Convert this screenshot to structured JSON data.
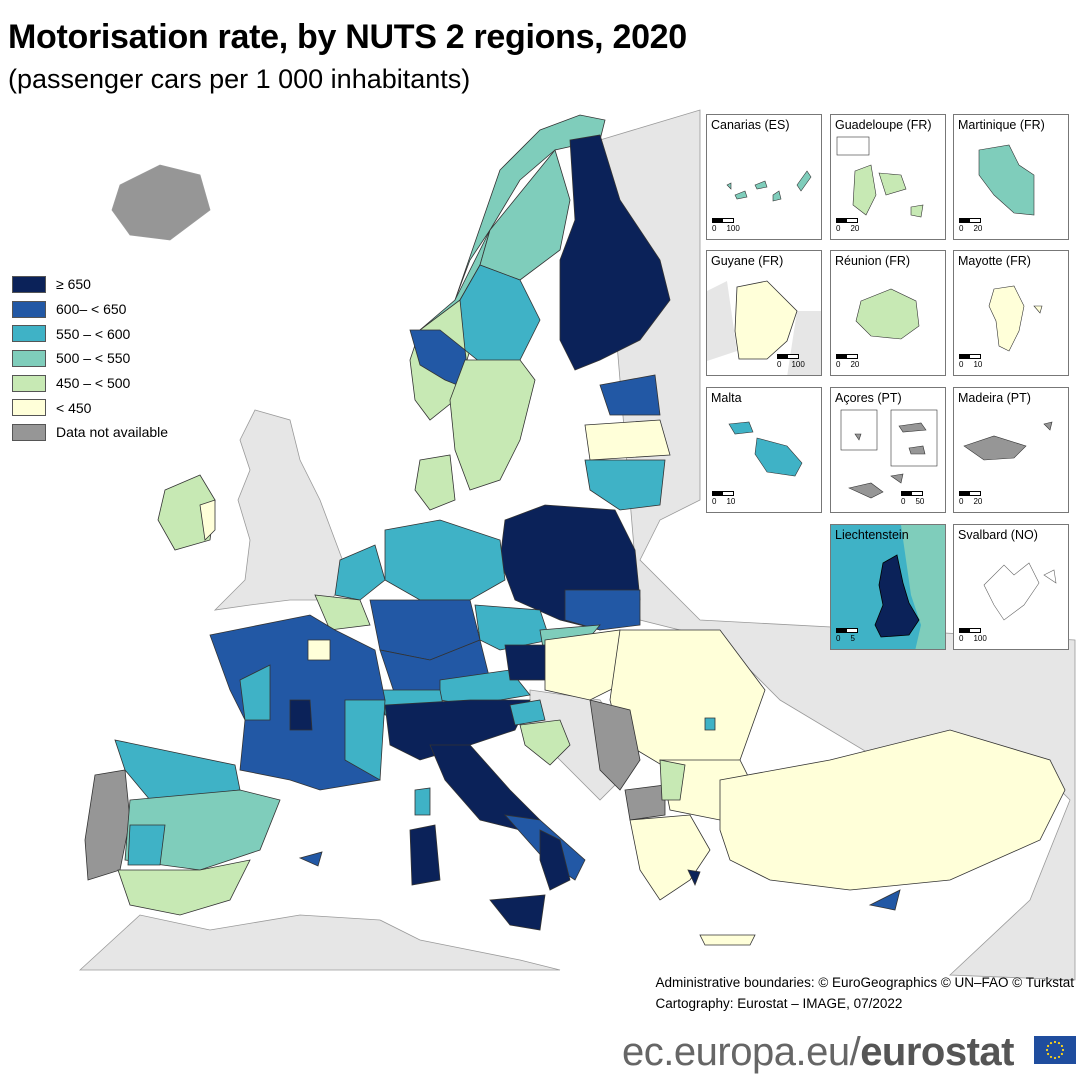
{
  "header": {
    "title": "Motorisation rate, by NUTS 2 regions, 2020",
    "subtitle": "(passenger cars per 1 000 inhabitants)"
  },
  "legend": {
    "items": [
      {
        "label": "≥ 650",
        "color": "#0b2259"
      },
      {
        "label": "600– < 650",
        "color": "#2258a5"
      },
      {
        "label": "550 – < 600",
        "color": "#3fb2c6"
      },
      {
        "label": "500 – < 550",
        "color": "#7fcdbb"
      },
      {
        "label": "450 – < 500",
        "color": "#c7e9b4"
      },
      {
        "label": "< 450",
        "color": "#ffffd9"
      },
      {
        "label": "Data not available",
        "color": "#969696"
      }
    ]
  },
  "insets": [
    {
      "name": "Canarias (ES)",
      "scale": [
        "0",
        "100"
      ]
    },
    {
      "name": "Guadeloupe (FR)",
      "scale": [
        "0",
        "20"
      ]
    },
    {
      "name": "Martinique (FR)",
      "scale": [
        "0",
        "20"
      ]
    },
    {
      "name": "Guyane (FR)",
      "scale": [
        "0",
        "100"
      ]
    },
    {
      "name": "Réunion (FR)",
      "scale": [
        "0",
        "20"
      ]
    },
    {
      "name": "Mayotte (FR)",
      "scale": [
        "0",
        "10"
      ]
    },
    {
      "name": "Malta",
      "scale": [
        "0",
        "10"
      ]
    },
    {
      "name": "Açores (PT)",
      "scale": [
        "0",
        "50"
      ]
    },
    {
      "name": "Madeira (PT)",
      "scale": [
        "0",
        "20"
      ]
    },
    {
      "name": "Liechtenstein",
      "scale": [
        "0",
        "5"
      ]
    },
    {
      "name": "Svalbard (NO)",
      "scale": [
        "0",
        "100"
      ]
    }
  ],
  "credits": {
    "line1": "Administrative boundaries: © EuroGeographics © UN–FAO © Turkstat",
    "line2": "Cartography: Eurostat – IMAGE, 07/2022"
  },
  "footer": {
    "domain": "ec.europa.eu/",
    "brand": "eurostat"
  },
  "colors": {
    "background_land": "#e6e6e6",
    "sea": "#ffffff",
    "border": "#333333"
  }
}
